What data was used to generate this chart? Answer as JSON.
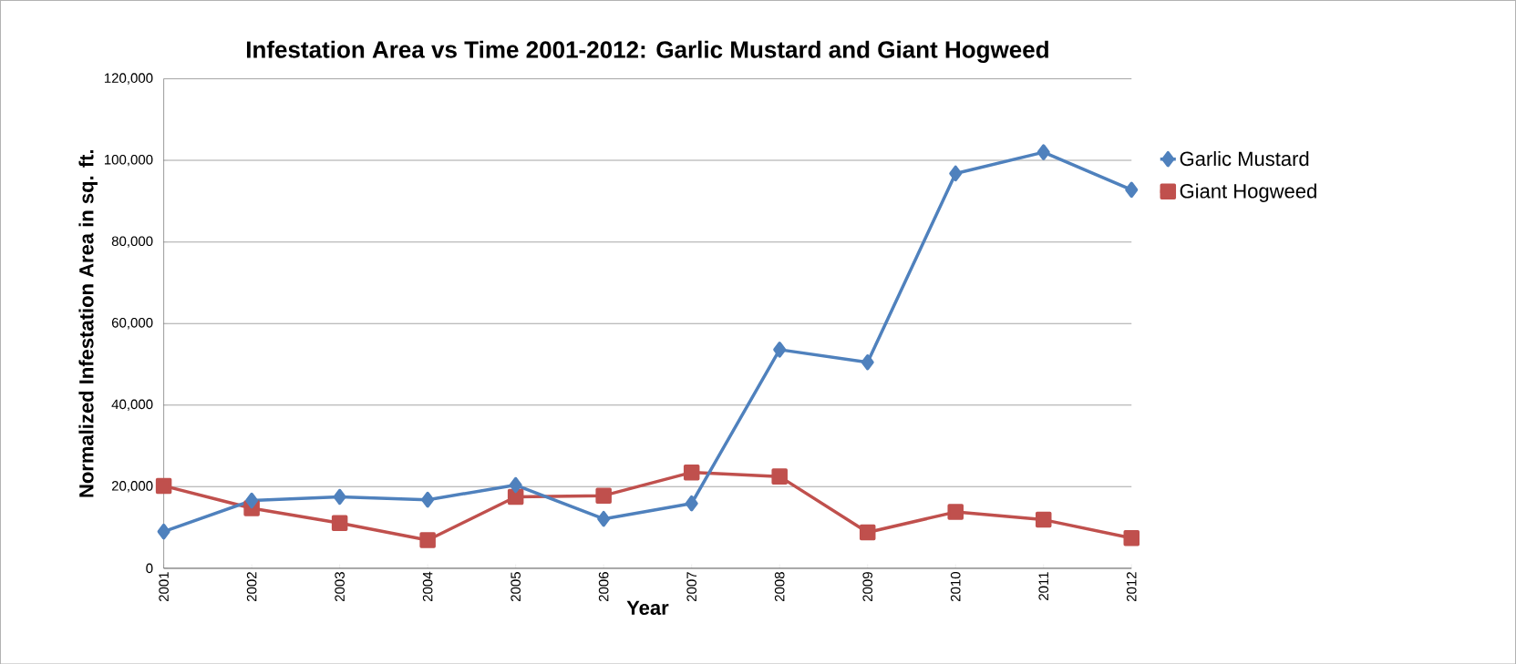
{
  "chart_data": {
    "type": "line",
    "title": "Infestation Area vs Time 2001-2012: Garlic Mustard and Giant Hogweed",
    "xlabel": "Year",
    "ylabel": "Normalized Infestation Area in sq. ft.",
    "categories": [
      "2001",
      "2002",
      "2003",
      "2004",
      "2005",
      "2006",
      "2007",
      "2008",
      "2009",
      "2010",
      "2011",
      "2012"
    ],
    "series": [
      {
        "name": "Garlic Mustard",
        "color": "#4f81bd",
        "marker": "diamond",
        "values": [
          9000,
          16600,
          17500,
          16800,
          20400,
          12100,
          15900,
          53600,
          50500,
          96800,
          102000,
          92800
        ]
      },
      {
        "name": "Giant Hogweed",
        "color": "#c0504d",
        "marker": "square",
        "values": [
          20200,
          14700,
          11100,
          6900,
          17500,
          17800,
          23500,
          22500,
          8800,
          13800,
          11900,
          7400
        ]
      }
    ],
    "ylim": [
      0,
      120000
    ],
    "yticks": [
      {
        "value": 0,
        "label": "0"
      },
      {
        "value": 20000,
        "label": "20,000"
      },
      {
        "value": 40000,
        "label": "40,000"
      },
      {
        "value": 60000,
        "label": "60,000"
      },
      {
        "value": 80000,
        "label": "80,000"
      },
      {
        "value": 100000,
        "label": "100,000"
      },
      {
        "value": 120000,
        "label": "120,000"
      }
    ],
    "grid": "y",
    "legend": "right",
    "line_style": "solid"
  }
}
